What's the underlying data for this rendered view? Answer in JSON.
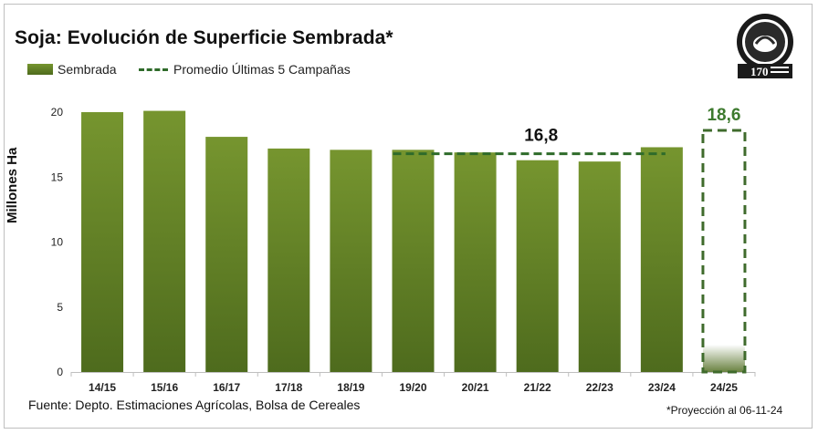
{
  "title": "Soja: Evolución de Superficie Sembrada*",
  "legend": {
    "bar_label": "Sembrada",
    "line_label": "Promedio Últimas 5 Campañas"
  },
  "source": "Fuente: Depto. Estimaciones Agrícolas, Bolsa de Cereales",
  "note": "*Proyección al 06-11-24",
  "colors": {
    "bar_top": "#76952f",
    "bar_bottom": "#4e6b1d",
    "average_line": "#2f6b2a",
    "projection_box": "#3f6b2c",
    "label_green": "#3d7a2e"
  },
  "chart_data": {
    "type": "bar",
    "categories": [
      "14/15",
      "15/16",
      "16/17",
      "17/18",
      "18/19",
      "19/20",
      "20/21",
      "21/22",
      "22/23",
      "23/24",
      "24/25"
    ],
    "series": [
      {
        "name": "Sembrada",
        "values": [
          20.0,
          20.1,
          18.1,
          17.2,
          17.1,
          17.1,
          16.9,
          16.3,
          16.2,
          17.3,
          18.6
        ]
      }
    ],
    "projection": {
      "category": "24/25",
      "value": 18.6,
      "label": "18,6"
    },
    "average": {
      "name": "Promedio Últimas 5 Campañas",
      "value": 16.8,
      "label": "16,8",
      "from_category": "19/20",
      "to_category": "23/24"
    },
    "ylabel": "Millones Ha",
    "xlabel": "",
    "ylim": [
      0,
      20
    ],
    "yticks": [
      0,
      5,
      10,
      15,
      20
    ],
    "grid": false,
    "legend_position": "top-left"
  }
}
